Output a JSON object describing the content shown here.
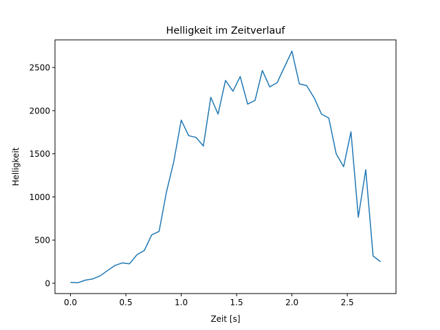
{
  "chart_data": {
    "type": "line",
    "title": "Helligkeit im Zeitverlauf",
    "xlabel": "Zeit [s]",
    "ylabel": "Helligkeit",
    "xlim": [
      -0.14,
      2.94
    ],
    "ylim": [
      -120,
      2820
    ],
    "xticks": [
      0.0,
      0.5,
      1.0,
      1.5,
      2.0,
      2.5
    ],
    "xtick_labels": [
      "0.0",
      "0.5",
      "1.0",
      "1.5",
      "2.0",
      "2.5"
    ],
    "yticks": [
      0,
      500,
      1000,
      1500,
      2000,
      2500
    ],
    "ytick_labels": [
      "0",
      "500",
      "1000",
      "1500",
      "2000",
      "2500"
    ],
    "grid": false,
    "series": [
      {
        "color": "#1f77b4",
        "x": [
          0.0,
          0.067,
          0.133,
          0.2,
          0.267,
          0.333,
          0.4,
          0.467,
          0.533,
          0.6,
          0.667,
          0.733,
          0.8,
          0.867,
          0.933,
          1.0,
          1.067,
          1.133,
          1.2,
          1.267,
          1.333,
          1.4,
          1.467,
          1.533,
          1.6,
          1.667,
          1.733,
          1.8,
          1.867,
          1.933,
          2.0,
          2.067,
          2.133,
          2.2,
          2.267,
          2.333,
          2.4,
          2.467,
          2.533,
          2.6,
          2.667,
          2.733,
          2.8
        ],
        "y": [
          10,
          5,
          35,
          50,
          85,
          145,
          205,
          235,
          225,
          330,
          380,
          560,
          600,
          1060,
          1410,
          1890,
          1710,
          1690,
          1590,
          2155,
          1960,
          2350,
          2225,
          2395,
          2075,
          2120,
          2465,
          2275,
          2325,
          2505,
          2690,
          2310,
          2290,
          2150,
          1960,
          1915,
          1500,
          1350,
          1755,
          765,
          1315,
          315,
          250
        ]
      }
    ]
  }
}
